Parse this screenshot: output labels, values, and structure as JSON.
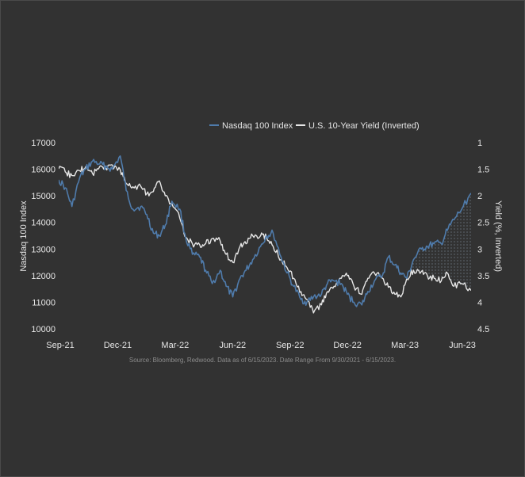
{
  "chart_data": {
    "type": "line",
    "title": "",
    "xlabel": "",
    "ylabel": "Nasdaq 100 Index",
    "y2label": "Yield (%, Inverted)",
    "x_ticks": [
      "Sep-21",
      "Dec-21",
      "Mar-22",
      "Jun-22",
      "Sep-22",
      "Dec-22",
      "Mar-23",
      "Jun-23"
    ],
    "y_ticks": [
      "17000",
      "16000",
      "15000",
      "14000",
      "13000",
      "12000",
      "11000",
      "10000"
    ],
    "y2_ticks": [
      "1",
      "1.5",
      "2",
      "2.5",
      "3",
      "3.5",
      "4",
      "4.5"
    ],
    "ylim": [
      10000,
      17000
    ],
    "y2lim": [
      1,
      4.5
    ],
    "y2_inverted": true,
    "grid": false,
    "legend_position": "top-center",
    "source": "Source: Bloomberg, Redwood. Data as of 6/15/2023. Date Range From 9/30/2021 - 6/15/2023.",
    "shaded_region": {
      "from": "2023-03-15",
      "to": "2023-06-15",
      "description": "gap between series"
    },
    "series": [
      {
        "name": "Nasdaq 100 Index",
        "axis": "left",
        "color": "#4f7bab",
        "x": [
          "2021-09-30",
          "2021-10-10",
          "2021-10-20",
          "2021-11-01",
          "2021-11-10",
          "2021-11-20",
          "2021-12-01",
          "2021-12-10",
          "2021-12-20",
          "2022-01-01",
          "2022-01-10",
          "2022-01-20",
          "2022-02-01",
          "2022-02-10",
          "2022-02-20",
          "2022-03-01",
          "2022-03-10",
          "2022-03-20",
          "2022-04-01",
          "2022-04-10",
          "2022-04-20",
          "2022-05-01",
          "2022-05-10",
          "2022-05-20",
          "2022-06-01",
          "2022-06-10",
          "2022-06-20",
          "2022-07-01",
          "2022-07-10",
          "2022-07-20",
          "2022-08-01",
          "2022-08-10",
          "2022-08-20",
          "2022-09-01",
          "2022-09-10",
          "2022-09-20",
          "2022-10-01",
          "2022-10-10",
          "2022-10-20",
          "2022-11-01",
          "2022-11-10",
          "2022-11-20",
          "2022-12-01",
          "2022-12-10",
          "2022-12-20",
          "2023-01-01",
          "2023-01-10",
          "2023-01-20",
          "2023-02-01",
          "2023-02-10",
          "2023-02-20",
          "2023-03-01",
          "2023-03-10",
          "2023-03-20",
          "2023-04-01",
          "2023-04-10",
          "2023-04-20",
          "2023-05-01",
          "2023-05-10",
          "2023-05-20",
          "2023-06-01",
          "2023-06-15"
        ],
        "values": [
          15600,
          15300,
          14600,
          15700,
          16000,
          16300,
          16200,
          16100,
          16000,
          16500,
          15200,
          14500,
          14600,
          14300,
          13600,
          13500,
          13900,
          14800,
          14500,
          13400,
          12800,
          12700,
          12200,
          11700,
          12200,
          11600,
          11200,
          11900,
          12200,
          12600,
          13100,
          13500,
          13600,
          12700,
          12100,
          11600,
          11100,
          11000,
          11200,
          11300,
          11700,
          11800,
          11700,
          11300,
          11000,
          10900,
          11400,
          11800,
          12000,
          12700,
          12400,
          12100,
          11900,
          12600,
          13000,
          13100,
          13200,
          13200,
          13700,
          14100,
          14500,
          15100
        ]
      },
      {
        "name": "U.S. 10-Year Yield (Inverted)",
        "axis": "right",
        "color": "#e6e6e6",
        "x": [
          "2021-09-30",
          "2021-10-10",
          "2021-10-20",
          "2021-11-01",
          "2021-11-10",
          "2021-11-20",
          "2021-12-01",
          "2021-12-10",
          "2021-12-20",
          "2022-01-01",
          "2022-01-10",
          "2022-01-20",
          "2022-02-01",
          "2022-02-10",
          "2022-02-20",
          "2022-03-01",
          "2022-03-10",
          "2022-03-20",
          "2022-04-01",
          "2022-04-10",
          "2022-04-20",
          "2022-05-01",
          "2022-05-10",
          "2022-05-20",
          "2022-06-01",
          "2022-06-10",
          "2022-06-20",
          "2022-07-01",
          "2022-07-10",
          "2022-07-20",
          "2022-08-01",
          "2022-08-10",
          "2022-08-20",
          "2022-09-01",
          "2022-09-10",
          "2022-09-20",
          "2022-10-01",
          "2022-10-10",
          "2022-10-20",
          "2022-11-01",
          "2022-11-10",
          "2022-11-20",
          "2022-12-01",
          "2022-12-10",
          "2022-12-20",
          "2023-01-01",
          "2023-01-10",
          "2023-01-20",
          "2023-02-01",
          "2023-02-10",
          "2023-02-20",
          "2023-03-01",
          "2023-03-10",
          "2023-03-20",
          "2023-04-01",
          "2023-04-10",
          "2023-04-20",
          "2023-05-01",
          "2023-05-10",
          "2023-05-20",
          "2023-06-01",
          "2023-06-15"
        ],
        "values": [
          1.49,
          1.55,
          1.62,
          1.53,
          1.45,
          1.58,
          1.45,
          1.48,
          1.42,
          1.51,
          1.77,
          1.83,
          1.82,
          1.96,
          1.92,
          1.72,
          2.0,
          2.15,
          2.42,
          2.78,
          2.9,
          2.92,
          2.9,
          2.8,
          2.85,
          3.1,
          3.25,
          2.95,
          2.9,
          2.75,
          2.75,
          2.78,
          2.95,
          3.2,
          3.35,
          3.55,
          3.8,
          3.95,
          4.2,
          4.05,
          3.8,
          3.7,
          3.55,
          3.5,
          3.7,
          3.85,
          3.55,
          3.45,
          3.55,
          3.72,
          3.85,
          3.9,
          3.55,
          3.4,
          3.42,
          3.5,
          3.55,
          3.6,
          3.45,
          3.7,
          3.65,
          3.78
        ]
      }
    ]
  }
}
